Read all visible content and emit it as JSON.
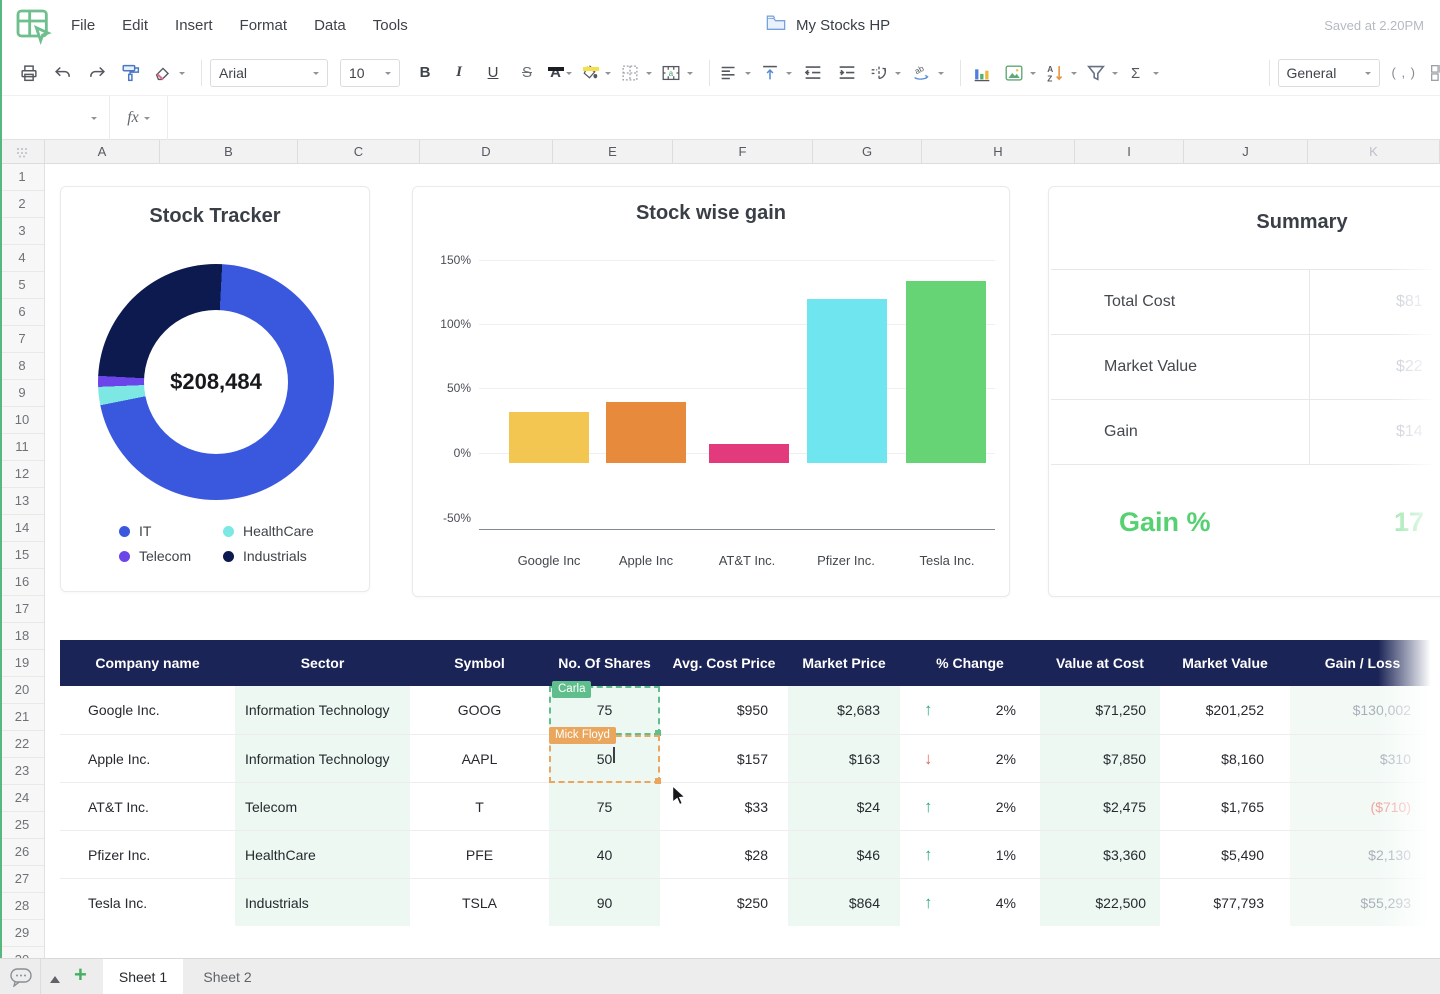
{
  "app": {
    "menus": [
      "File",
      "Edit",
      "Insert",
      "Format",
      "Data",
      "Tools"
    ],
    "doc_title": "My Stocks HP",
    "saved_status": "Saved at 2.20PM"
  },
  "toolbar": {
    "font_name": "Arial",
    "font_size": "10",
    "bold_label": "B",
    "italic_label": "I",
    "underline_label": "U",
    "strikethrough_label": "S",
    "text_color_label": "A",
    "number_format": "General",
    "thousands_label": "( , )",
    "icon_names": [
      "print",
      "undo",
      "redo",
      "paint-format",
      "eraser",
      "bold",
      "italic",
      "underline",
      "strikethrough",
      "text-color",
      "fill-color",
      "borders",
      "merge-cells",
      "horizontal-align",
      "vertical-align",
      "decrease-indent",
      "increase-indent",
      "text-rotation",
      "text-direction",
      "insert-chart",
      "insert-image",
      "sort",
      "filter",
      "sum",
      "thousands-separator",
      "more-formats"
    ]
  },
  "formula_bar": {
    "fx_label": "fx",
    "name_box_value": ""
  },
  "grid": {
    "columns": [
      "A",
      "B",
      "C",
      "D",
      "E",
      "F",
      "G",
      "H",
      "I",
      "J",
      "K"
    ],
    "row_count": 30
  },
  "chart_data": [
    {
      "type": "pie",
      "subtype": "donut",
      "title": "Stock Tracker",
      "center_label": "$208,484",
      "start_angle_deg": 3,
      "legend_position": "bottom",
      "units": "percent_of_total",
      "slices": [
        {
          "label": "IT",
          "value": 71,
          "color": "#3A58DE"
        },
        {
          "label": "HealthCare",
          "value": 2.5,
          "color": "#7CE7E3"
        },
        {
          "label": "Telecom",
          "value": 1.5,
          "color": "#6B45E9"
        },
        {
          "label": "Industrials",
          "value": 25,
          "color": "#0D1A4F"
        }
      ]
    },
    {
      "type": "bar",
      "title": "Stock wise gain",
      "categories": [
        "Google Inc",
        "Apple Inc",
        "AT&T Inc.",
        "Pfizer Inc.",
        "Tesla Inc."
      ],
      "values": [
        40,
        48,
        15,
        128,
        142
      ],
      "colors": [
        "#F2C651",
        "#E78A3B",
        "#E23A7D",
        "#6FE6EF",
        "#66D374"
      ],
      "xlabel": "",
      "ylabel": "",
      "ylim": [
        -50,
        150
      ],
      "yticks": [
        "150%",
        "100%",
        "50%",
        "0%",
        "-50%"
      ],
      "grid": true,
      "legend_position": "none"
    }
  ],
  "summary": {
    "title": "Summary",
    "rows": [
      {
        "label": "Total Cost",
        "value": "$81"
      },
      {
        "label": "Market Value",
        "value": "$22"
      },
      {
        "label": "Gain",
        "value": "$14"
      }
    ],
    "gain_pct_label": "Gain %",
    "gain_pct_value": "17"
  },
  "table": {
    "headers": [
      "Company name",
      "Sector",
      "Symbol",
      "No. Of Shares",
      "Avg. Cost Price",
      "Market Price",
      "% Change",
      "Value at Cost",
      "Market Value",
      "Gain / Loss"
    ],
    "rows": [
      {
        "company": "Google Inc.",
        "sector": "Information Technology",
        "symbol": "GOOG",
        "shares": "75",
        "avg_cost_price": "$950",
        "market_price": "$2,683",
        "change_direction": "up",
        "change_pct": "2%",
        "value_at_cost": "$71,250",
        "market_value": "$201,252",
        "gain_loss": "$130,002",
        "gain_loss_negative": false
      },
      {
        "company": "Apple Inc.",
        "sector": "Information Technology",
        "symbol": "AAPL",
        "shares": "50",
        "avg_cost_price": "$157",
        "market_price": "$163",
        "change_direction": "down",
        "change_pct": "2%",
        "value_at_cost": "$7,850",
        "market_value": "$8,160",
        "gain_loss": "$310",
        "gain_loss_negative": false
      },
      {
        "company": "AT&T Inc.",
        "sector": "Telecom",
        "symbol": "T",
        "shares": "75",
        "avg_cost_price": "$33",
        "market_price": "$24",
        "change_direction": "up",
        "change_pct": "2%",
        "value_at_cost": "$2,475",
        "market_value": "$1,765",
        "gain_loss": "($710)",
        "gain_loss_negative": true
      },
      {
        "company": "Pfizer Inc.",
        "sector": "HealthCare",
        "symbol": "PFE",
        "shares": "40",
        "avg_cost_price": "$28",
        "market_price": "$46",
        "change_direction": "up",
        "change_pct": "1%",
        "value_at_cost": "$3,360",
        "market_value": "$5,490",
        "gain_loss": "$2,130",
        "gain_loss_negative": false
      },
      {
        "company": "Tesla Inc.",
        "sector": "Industrials",
        "symbol": "TSLA",
        "shares": "90",
        "avg_cost_price": "$250",
        "market_price": "$864",
        "change_direction": "up",
        "change_pct": "4%",
        "value_at_cost": "$22,500",
        "market_value": "$77,793",
        "gain_loss": "$55,293",
        "gain_loss_negative": false
      }
    ],
    "collaborators": [
      {
        "name": "Carla",
        "color": "#5FBE8C"
      },
      {
        "name": "Mick Floyd",
        "color": "#EAA65D"
      }
    ]
  },
  "footer": {
    "tabs": [
      {
        "label": "Sheet 1",
        "active": true
      },
      {
        "label": "Sheet 2",
        "active": false
      }
    ]
  },
  "colors": {
    "accent_green": "#57B87F",
    "header_navy": "#1B2456",
    "mint_column": "#EDF8F2",
    "up_arrow": "#2EA97D",
    "down_arrow": "#DC695F",
    "gain_green": "#56D171"
  }
}
